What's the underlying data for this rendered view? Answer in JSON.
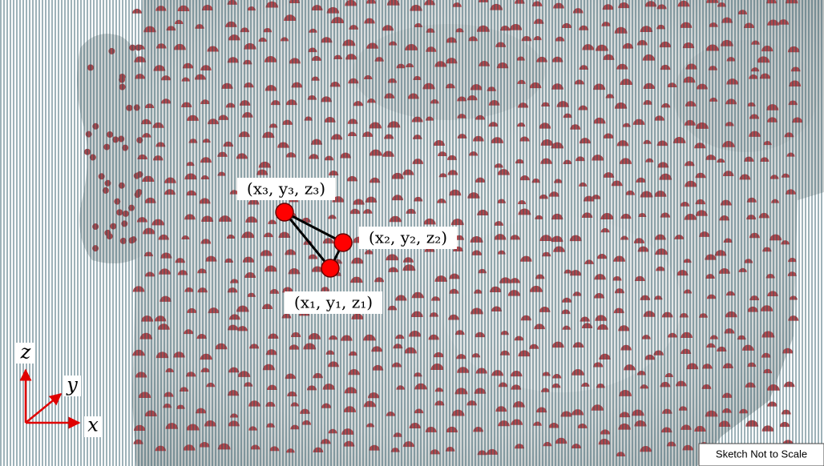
{
  "points": [
    {
      "label": "(x₃, y₃, z₃)"
    },
    {
      "label": "(x₂, y₂, z₂)"
    },
    {
      "label": "(x₁, y₁, z₁)"
    }
  ],
  "axes": {
    "z": "z",
    "y": "y",
    "x": "x"
  },
  "note": "Sketch Not to Scale"
}
